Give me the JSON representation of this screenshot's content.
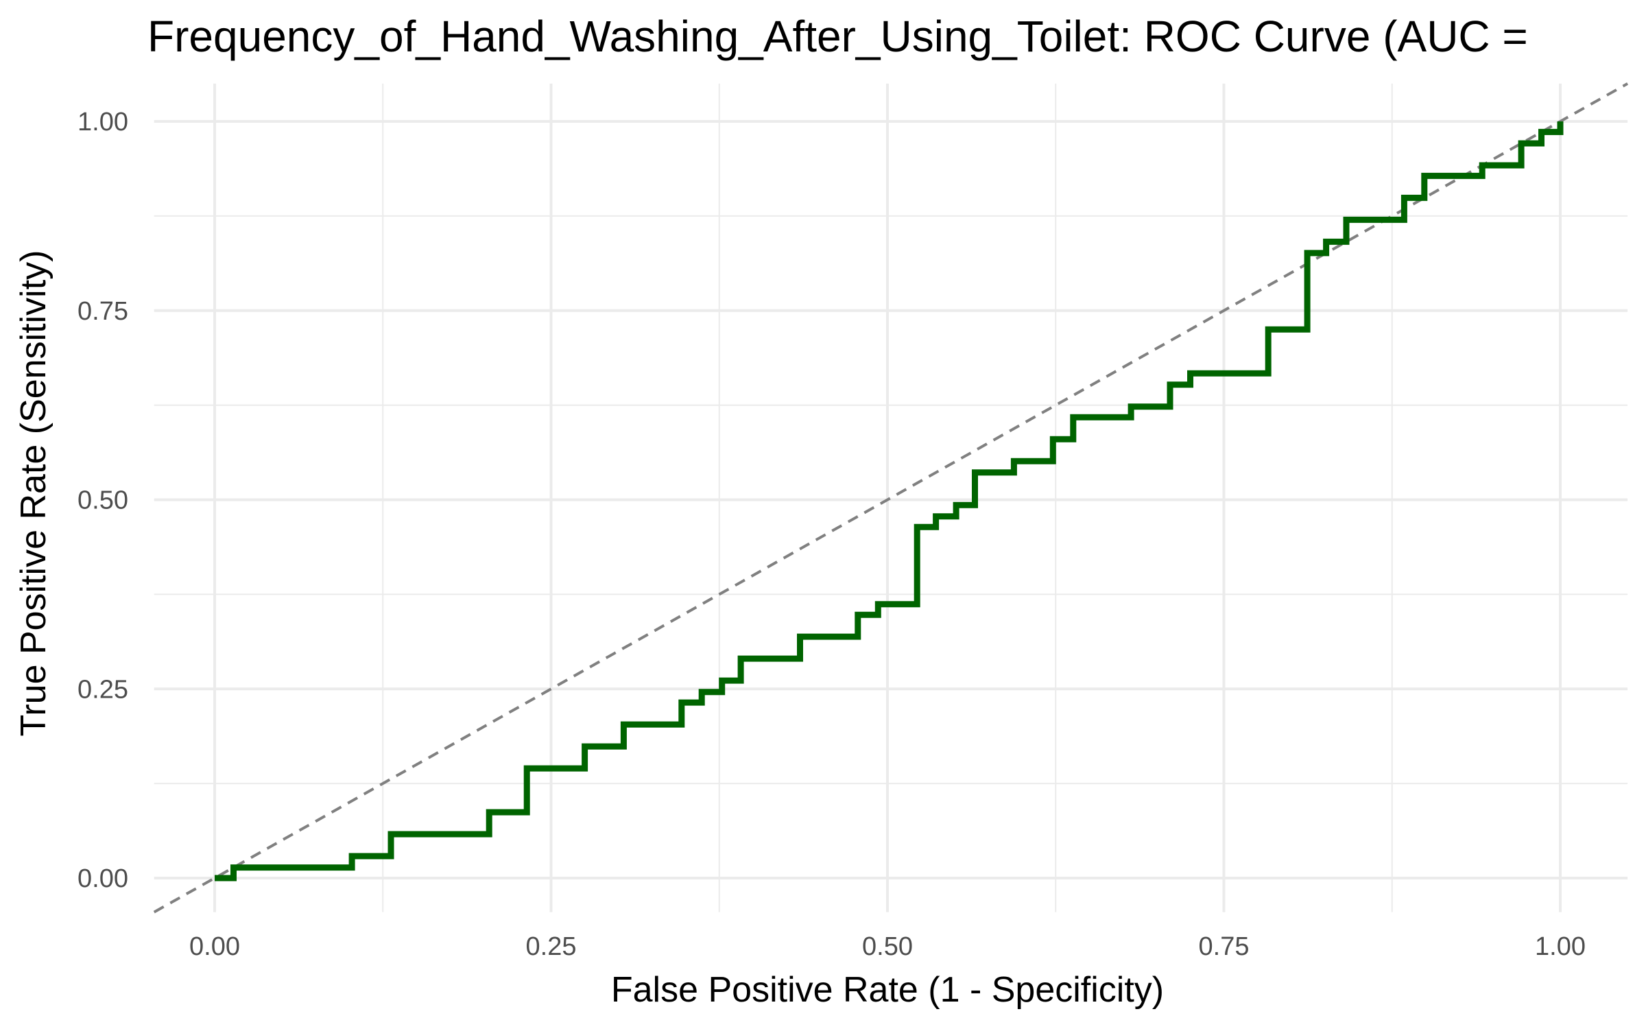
{
  "chart_data": {
    "type": "line",
    "title": "Frequency_of_Hand_Washing_After_Using_Toilet: ROC Curve (AUC = ",
    "xlabel": "False Positive Rate (1 - Specificity)",
    "ylabel": "True Positive Rate (Sensitivity)",
    "xlim": [
      -0.045,
      1.05
    ],
    "ylim": [
      -0.045,
      1.05
    ],
    "x_ticks": [
      "0.00",
      "0.25",
      "0.50",
      "0.75",
      "1.00"
    ],
    "y_ticks": [
      "0.00",
      "0.25",
      "0.50",
      "0.75",
      "1.00"
    ],
    "grid": true,
    "legend": "none",
    "series": [
      {
        "color": "#006400",
        "step": true,
        "points": [
          [
            0.0,
            0.0
          ],
          [
            0.014,
            0.0
          ],
          [
            0.014,
            0.014
          ],
          [
            0.102,
            0.014
          ],
          [
            0.102,
            0.029
          ],
          [
            0.131,
            0.029
          ],
          [
            0.131,
            0.058
          ],
          [
            0.204,
            0.058
          ],
          [
            0.204,
            0.087
          ],
          [
            0.232,
            0.087
          ],
          [
            0.232,
            0.145
          ],
          [
            0.275,
            0.145
          ],
          [
            0.275,
            0.174
          ],
          [
            0.304,
            0.174
          ],
          [
            0.304,
            0.203
          ],
          [
            0.347,
            0.203
          ],
          [
            0.347,
            0.232
          ],
          [
            0.362,
            0.232
          ],
          [
            0.362,
            0.246
          ],
          [
            0.377,
            0.246
          ],
          [
            0.377,
            0.261
          ],
          [
            0.391,
            0.261
          ],
          [
            0.391,
            0.29
          ],
          [
            0.435,
            0.29
          ],
          [
            0.435,
            0.319
          ],
          [
            0.478,
            0.319
          ],
          [
            0.478,
            0.348
          ],
          [
            0.493,
            0.348
          ],
          [
            0.493,
            0.362
          ],
          [
            0.522,
            0.362
          ],
          [
            0.522,
            0.464
          ],
          [
            0.536,
            0.464
          ],
          [
            0.536,
            0.478
          ],
          [
            0.551,
            0.478
          ],
          [
            0.551,
            0.493
          ],
          [
            0.565,
            0.493
          ],
          [
            0.565,
            0.536
          ],
          [
            0.594,
            0.536
          ],
          [
            0.594,
            0.551
          ],
          [
            0.623,
            0.551
          ],
          [
            0.623,
            0.58
          ],
          [
            0.638,
            0.58
          ],
          [
            0.638,
            0.609
          ],
          [
            0.681,
            0.609
          ],
          [
            0.681,
            0.623
          ],
          [
            0.71,
            0.623
          ],
          [
            0.71,
            0.652
          ],
          [
            0.725,
            0.652
          ],
          [
            0.725,
            0.667
          ],
          [
            0.783,
            0.667
          ],
          [
            0.783,
            0.725
          ],
          [
            0.812,
            0.725
          ],
          [
            0.812,
            0.826
          ],
          [
            0.826,
            0.826
          ],
          [
            0.826,
            0.841
          ],
          [
            0.841,
            0.841
          ],
          [
            0.841,
            0.87
          ],
          [
            0.884,
            0.87
          ],
          [
            0.884,
            0.899
          ],
          [
            0.899,
            0.899
          ],
          [
            0.899,
            0.928
          ],
          [
            0.942,
            0.928
          ],
          [
            0.942,
            0.942
          ],
          [
            0.971,
            0.942
          ],
          [
            0.971,
            0.971
          ],
          [
            0.986,
            0.971
          ],
          [
            0.986,
            0.986
          ],
          [
            1.0,
            0.986
          ],
          [
            1.0,
            1.0
          ]
        ]
      }
    ],
    "reference_line": {
      "from": [
        -0.045,
        -0.045
      ],
      "to": [
        1.05,
        1.05
      ],
      "color": "#808080",
      "style": "dashed"
    }
  }
}
